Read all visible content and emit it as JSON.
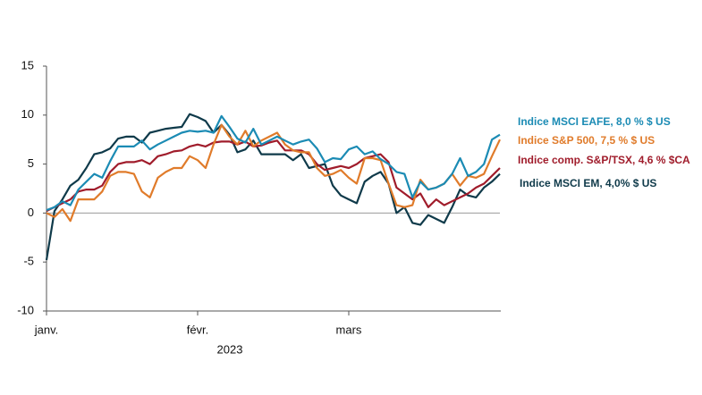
{
  "chart_data": {
    "type": "line",
    "x_label": "2023",
    "categories": [
      "janv.",
      null,
      null,
      null,
      null,
      null,
      null,
      null,
      null,
      null,
      null,
      null,
      null,
      null,
      null,
      null,
      null,
      null,
      null,
      "févr.",
      null,
      null,
      null,
      null,
      null,
      null,
      null,
      null,
      null,
      null,
      null,
      null,
      null,
      null,
      null,
      null,
      null,
      null,
      "mars",
      null,
      null,
      null,
      null,
      null,
      null,
      null,
      null,
      null,
      null,
      null,
      null,
      null,
      null,
      null,
      null,
      null,
      null,
      null
    ],
    "ylim": [
      -10,
      15
    ],
    "yticks": [
      -10,
      -5,
      0,
      5,
      10,
      15
    ],
    "grid": false,
    "legend": "right",
    "series": [
      {
        "name": "Indice MSCI EAFE, 8,0 % $ US",
        "color": "#1b8bb4",
        "values": [
          0.3,
          0.6,
          1.2,
          0.8,
          2.4,
          3.2,
          4.0,
          3.6,
          5.3,
          6.8,
          6.8,
          6.8,
          7.4,
          6.5,
          7.0,
          7.4,
          7.8,
          8.2,
          8.4,
          8.3,
          8.4,
          8.2,
          9.9,
          8.8,
          7.6,
          7.2,
          8.6,
          7.0,
          7.4,
          7.8,
          7.4,
          7.0,
          7.3,
          7.5,
          6.6,
          5.2,
          5.6,
          5.5,
          6.5,
          6.8,
          6.0,
          6.3,
          5.5,
          5.0,
          4.2,
          4.0,
          1.6,
          3.2,
          2.4,
          2.6,
          3.0,
          4.0,
          5.6,
          3.8,
          4.2,
          5.0,
          7.5,
          8.0
        ]
      },
      {
        "name": "Indice S&P 500, 7,5 % $ US",
        "color": "#e07b2a",
        "values": [
          0.0,
          -0.4,
          0.4,
          -0.8,
          1.4,
          1.4,
          1.4,
          2.2,
          3.8,
          4.2,
          4.2,
          4.0,
          2.2,
          1.6,
          3.6,
          4.2,
          4.6,
          4.6,
          5.8,
          5.4,
          4.6,
          7.0,
          9.0,
          7.8,
          7.0,
          8.4,
          6.8,
          7.4,
          7.8,
          8.2,
          7.0,
          6.4,
          6.2,
          6.2,
          4.6,
          3.8,
          4.0,
          4.4,
          3.6,
          3.0,
          5.6,
          5.6,
          5.4,
          3.0,
          0.8,
          0.6,
          0.8,
          3.4,
          2.4,
          2.6,
          3.0,
          4.0,
          2.8,
          3.8,
          3.6,
          4.0,
          5.8,
          7.5
        ]
      },
      {
        "name": "Indice comp. S&P/TSX, 4,6 % $CA",
        "color": "#a01c2b",
        "values": [
          0.2,
          0.6,
          1.0,
          1.4,
          2.2,
          2.4,
          2.4,
          2.8,
          4.2,
          5.0,
          5.2,
          5.2,
          5.4,
          5.0,
          5.8,
          6.0,
          6.3,
          6.4,
          6.8,
          7.0,
          6.8,
          7.2,
          7.3,
          7.3,
          7.0,
          7.3,
          6.8,
          6.9,
          7.2,
          7.4,
          6.4,
          6.4,
          6.4,
          6.0,
          5.0,
          4.4,
          4.6,
          4.8,
          4.6,
          5.0,
          5.6,
          5.8,
          6.0,
          5.2,
          2.6,
          2.0,
          1.4,
          2.0,
          0.6,
          1.4,
          0.8,
          1.2,
          1.6,
          2.0,
          2.6,
          3.0,
          3.8,
          4.6
        ]
      },
      {
        "name": "Indice MSCI EM, 4,0% $ US",
        "color": "#0f3a4a",
        "values": [
          -4.8,
          0.2,
          1.4,
          2.8,
          3.4,
          4.6,
          6.0,
          6.2,
          6.6,
          7.6,
          7.8,
          7.8,
          7.2,
          8.2,
          8.4,
          8.6,
          8.7,
          8.8,
          10.1,
          9.8,
          9.4,
          8.2,
          9.0,
          8.0,
          6.2,
          6.5,
          7.4,
          6.0,
          6.0,
          6.0,
          6.0,
          5.4,
          6.0,
          4.6,
          4.8,
          5.0,
          2.8,
          1.8,
          1.4,
          1.0,
          3.2,
          3.8,
          4.2,
          3.0,
          0.0,
          0.6,
          -1.0,
          -1.2,
          -0.2,
          -0.6,
          -1.0,
          0.6,
          2.4,
          1.8,
          1.6,
          2.6,
          3.2,
          4.0
        ]
      }
    ]
  }
}
